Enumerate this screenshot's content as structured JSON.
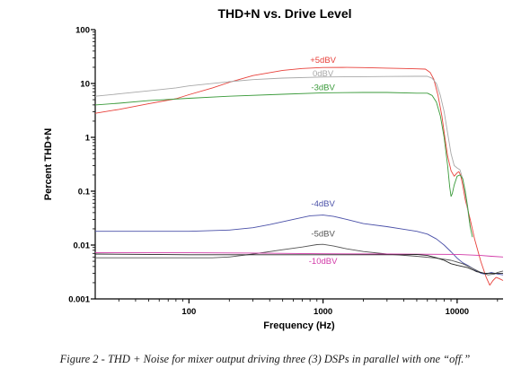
{
  "caption": "Figure 2 - THD + Noise for mixer output driving three (3) DSPs in parallel with one “off.”",
  "chart_data": {
    "type": "line",
    "title": "THD+N vs. Drive Level",
    "xlabel": "Frequency (Hz)",
    "ylabel": "Percent THD+N",
    "x_scale": "log",
    "y_scale": "log",
    "xlim": [
      20,
      22000
    ],
    "ylim": [
      0.001,
      100
    ],
    "x_ticks": [
      {
        "value": 100,
        "label": "100"
      },
      {
        "value": 1000,
        "label": "1000"
      },
      {
        "value": 10000,
        "label": "10000"
      }
    ],
    "y_ticks": [
      {
        "value": 0.001,
        "label": "0.001"
      },
      {
        "value": 0.01,
        "label": "0.01"
      },
      {
        "value": 0.1,
        "label": "0.1"
      },
      {
        "value": 1,
        "label": "1"
      },
      {
        "value": 10,
        "label": "10"
      },
      {
        "value": 100,
        "label": "100"
      }
    ],
    "grid": false,
    "legend": "none",
    "series": [
      {
        "name": "+5dBV",
        "color": "#e8403a",
        "label_at": [
          1000,
          24
        ],
        "points": [
          [
            20,
            2.8
          ],
          [
            30,
            3.3
          ],
          [
            50,
            4.2
          ],
          [
            80,
            5.2
          ],
          [
            100,
            6.2
          ],
          [
            150,
            8.3
          ],
          [
            200,
            10.5
          ],
          [
            300,
            14
          ],
          [
            500,
            17.5
          ],
          [
            700,
            19
          ],
          [
            1000,
            19.8
          ],
          [
            1500,
            19.9
          ],
          [
            2000,
            19.7
          ],
          [
            3000,
            19.3
          ],
          [
            4000,
            19
          ],
          [
            5000,
            18.7
          ],
          [
            5800,
            18.5
          ],
          [
            6300,
            16
          ],
          [
            6700,
            12
          ],
          [
            7200,
            6
          ],
          [
            7700,
            2.5
          ],
          [
            8100,
            1
          ],
          [
            8500,
            0.45
          ],
          [
            9000,
            0.24
          ],
          [
            9500,
            0.19
          ],
          [
            10000,
            0.22
          ],
          [
            10300,
            0.23
          ],
          [
            10600,
            0.2
          ],
          [
            11000,
            0.13
          ],
          [
            11500,
            0.07
          ],
          [
            12500,
            0.03
          ],
          [
            13500,
            0.013
          ],
          [
            15000,
            0.005
          ],
          [
            16500,
            0.0025
          ],
          [
            17500,
            0.0018
          ],
          [
            18500,
            0.0022
          ],
          [
            19500,
            0.0025
          ],
          [
            20500,
            0.0024
          ],
          [
            22000,
            0.0022
          ]
        ]
      },
      {
        "name": "0dBV",
        "color": "#a8a8a8",
        "label_at": [
          1000,
          13.5
        ],
        "points": [
          [
            20,
            5.8
          ],
          [
            30,
            6.4
          ],
          [
            50,
            7.3
          ],
          [
            80,
            8.3
          ],
          [
            100,
            9
          ],
          [
            200,
            10.8
          ],
          [
            300,
            11.8
          ],
          [
            500,
            12.6
          ],
          [
            1000,
            13.2
          ],
          [
            2000,
            13.4
          ],
          [
            3000,
            13.5
          ],
          [
            5000,
            13.6
          ],
          [
            6000,
            13.6
          ],
          [
            6500,
            12.5
          ],
          [
            7000,
            10
          ],
          [
            7500,
            6
          ],
          [
            8000,
            3
          ],
          [
            8500,
            1.2
          ],
          [
            9000,
            0.5
          ],
          [
            9500,
            0.3
          ],
          [
            10000,
            0.27
          ],
          [
            10500,
            0.25
          ],
          [
            11000,
            0.17
          ],
          [
            11500,
            0.09
          ],
          [
            12000,
            0.045
          ],
          [
            12500,
            0.022
          ]
        ]
      },
      {
        "name": "-3dBV",
        "color": "#3a9a3a",
        "label_at": [
          1000,
          7.5
        ],
        "points": [
          [
            20,
            4
          ],
          [
            30,
            4.3
          ],
          [
            50,
            4.8
          ],
          [
            100,
            5.3
          ],
          [
            200,
            5.8
          ],
          [
            500,
            6.3
          ],
          [
            1000,
            6.7
          ],
          [
            2000,
            6.8
          ],
          [
            3000,
            6.8
          ],
          [
            5000,
            6.6
          ],
          [
            6000,
            6.6
          ],
          [
            6500,
            6
          ],
          [
            7000,
            4.5
          ],
          [
            7500,
            2.5
          ],
          [
            8000,
            1
          ],
          [
            8500,
            0.3
          ],
          [
            8800,
            0.12
          ],
          [
            9000,
            0.08
          ],
          [
            9200,
            0.09
          ],
          [
            9500,
            0.13
          ],
          [
            10000,
            0.19
          ],
          [
            10500,
            0.2
          ],
          [
            11000,
            0.17
          ],
          [
            11500,
            0.1
          ],
          [
            12000,
            0.05
          ],
          [
            12500,
            0.022
          ],
          [
            13000,
            0.014
          ]
        ]
      },
      {
        "name": "-4dBV",
        "color": "#4a50a8",
        "label_at": [
          1000,
          0.052
        ],
        "points": [
          [
            20,
            0.018
          ],
          [
            50,
            0.018
          ],
          [
            100,
            0.018
          ],
          [
            200,
            0.019
          ],
          [
            300,
            0.021
          ],
          [
            400,
            0.024
          ],
          [
            600,
            0.03
          ],
          [
            800,
            0.035
          ],
          [
            1000,
            0.036
          ],
          [
            1200,
            0.034
          ],
          [
            1500,
            0.03
          ],
          [
            2000,
            0.025
          ],
          [
            3000,
            0.022
          ],
          [
            5000,
            0.018
          ],
          [
            6000,
            0.016
          ],
          [
            7000,
            0.013
          ],
          [
            8000,
            0.01
          ],
          [
            9000,
            0.0075
          ],
          [
            10000,
            0.0057
          ],
          [
            11000,
            0.0047
          ],
          [
            12000,
            0.0042
          ],
          [
            13000,
            0.0037
          ],
          [
            14000,
            0.0033
          ],
          [
            15000,
            0.003
          ],
          [
            16000,
            0.0029
          ],
          [
            17000,
            0.003
          ],
          [
            18000,
            0.0031
          ],
          [
            19000,
            0.003
          ],
          [
            20000,
            0.0029
          ],
          [
            22000,
            0.0028
          ]
        ]
      },
      {
        "name": "-5dBV",
        "color": "#555555",
        "label_at": [
          1000,
          0.0145
        ],
        "points": [
          [
            20,
            0.0058
          ],
          [
            50,
            0.0058
          ],
          [
            100,
            0.0058
          ],
          [
            150,
            0.0058
          ],
          [
            200,
            0.006
          ],
          [
            300,
            0.0068
          ],
          [
            500,
            0.0082
          ],
          [
            700,
            0.0092
          ],
          [
            900,
            0.0102
          ],
          [
            1000,
            0.0103
          ],
          [
            1200,
            0.0096
          ],
          [
            1500,
            0.0085
          ],
          [
            2000,
            0.0076
          ],
          [
            3000,
            0.0068
          ],
          [
            5000,
            0.0062
          ],
          [
            7000,
            0.0057
          ],
          [
            9000,
            0.0052
          ],
          [
            11000,
            0.0045
          ],
          [
            13000,
            0.0037
          ],
          [
            15000,
            0.0031
          ],
          [
            17000,
            0.0028
          ],
          [
            19000,
            0.0029
          ],
          [
            20000,
            0.0031
          ],
          [
            22000,
            0.0033
          ]
        ]
      },
      {
        "name": "-10dBV",
        "color": "#d23aa8",
        "label_at": [
          1000,
          0.0045
        ],
        "points": [
          [
            20,
            0.0072
          ],
          [
            100,
            0.0072
          ],
          [
            300,
            0.0071
          ],
          [
            1000,
            0.0069
          ],
          [
            3000,
            0.0068
          ],
          [
            10000,
            0.0067
          ],
          [
            15000,
            0.0064
          ],
          [
            18000,
            0.0062
          ],
          [
            22000,
            0.006
          ]
        ]
      },
      {
        "name": "",
        "color": "#222222",
        "points": [
          [
            20,
            0.0068
          ],
          [
            50,
            0.0067
          ],
          [
            100,
            0.0066
          ],
          [
            200,
            0.0066
          ],
          [
            500,
            0.0066
          ],
          [
            1000,
            0.0066
          ],
          [
            2000,
            0.0066
          ],
          [
            4000,
            0.0066
          ],
          [
            5000,
            0.0067
          ],
          [
            6000,
            0.0064
          ],
          [
            7000,
            0.0058
          ],
          [
            8000,
            0.0052
          ],
          [
            9000,
            0.0045
          ],
          [
            10000,
            0.0042
          ],
          [
            11000,
            0.004
          ],
          [
            12000,
            0.0038
          ],
          [
            13000,
            0.0035
          ],
          [
            14000,
            0.0032
          ],
          [
            15000,
            0.0031
          ],
          [
            16000,
            0.003
          ],
          [
            17000,
            0.003
          ],
          [
            20000,
            0.003
          ],
          [
            22000,
            0.003
          ]
        ]
      }
    ]
  }
}
